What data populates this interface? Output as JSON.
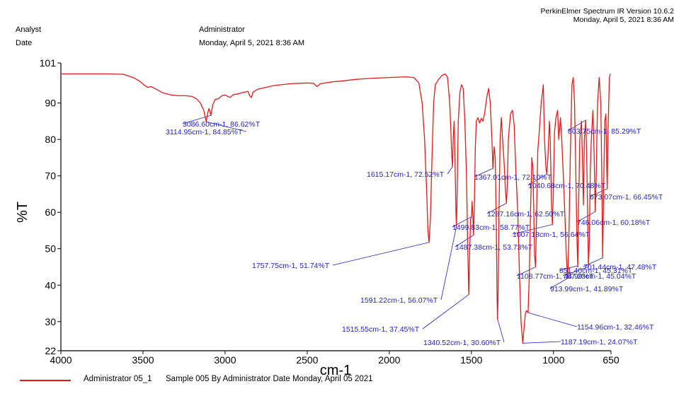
{
  "header": {
    "software": "PerkinElmer Spectrum IR Version 10.6.2",
    "printed": "Monday, April 5, 2021 8:36 AM",
    "analyst_label": "Analyst",
    "analyst_value": "Administrator",
    "date_label": "Date",
    "date_value": "Monday, April 5, 2021 8:36 AM"
  },
  "legend": {
    "name": "Administrator 05_1",
    "description": "Sample 005 By Administrator Date Monday, April 05 2021",
    "color": "#e11b1b"
  },
  "colors": {
    "spectrum": "#e11b1b",
    "annotation": "#1f1fcc",
    "axis": "#000000"
  },
  "chart_data": {
    "type": "line",
    "xlabel": "cm-1",
    "ylabel": "%T",
    "xlim": [
      4000,
      650
    ],
    "ylim": [
      22,
      101
    ],
    "x_ticks": [
      4000,
      3500,
      3000,
      2500,
      2000,
      1500,
      1000,
      650
    ],
    "y_ticks": [
      22,
      30,
      40,
      50,
      60,
      70,
      80,
      90,
      101
    ],
    "grid": false,
    "series": [
      {
        "name": "Administrator 05_1",
        "points": [
          [
            4000,
            98.0
          ],
          [
            3900,
            98.0
          ],
          [
            3800,
            98.0
          ],
          [
            3700,
            98.0
          ],
          [
            3620,
            97.9
          ],
          [
            3560,
            97.0
          ],
          [
            3520,
            96.0
          ],
          [
            3490,
            94.8
          ],
          [
            3470,
            94.3
          ],
          [
            3450,
            94.5
          ],
          [
            3420,
            93.8
          ],
          [
            3380,
            92.8
          ],
          [
            3330,
            92.2
          ],
          [
            3280,
            92.0
          ],
          [
            3240,
            92.0
          ],
          [
            3200,
            91.8
          ],
          [
            3170,
            91.0
          ],
          [
            3150,
            90.0
          ],
          [
            3130,
            88.0
          ],
          [
            3115,
            84.85
          ],
          [
            3105,
            87.5
          ],
          [
            3098,
            88.5
          ],
          [
            3087,
            86.62
          ],
          [
            3075,
            89.5
          ],
          [
            3060,
            91.0
          ],
          [
            3040,
            91.2
          ],
          [
            3020,
            92.0
          ],
          [
            3000,
            92.2
          ],
          [
            2970,
            91.5
          ],
          [
            2950,
            92.3
          ],
          [
            2920,
            92.5
          ],
          [
            2900,
            92.8
          ],
          [
            2880,
            93.0
          ],
          [
            2860,
            93.2
          ],
          [
            2850,
            92.0
          ],
          [
            2840,
            91.5
          ],
          [
            2830,
            93.0
          ],
          [
            2800,
            93.8
          ],
          [
            2750,
            94.3
          ],
          [
            2700,
            94.8
          ],
          [
            2600,
            95.3
          ],
          [
            2500,
            95.5
          ],
          [
            2460,
            95.4
          ],
          [
            2440,
            94.5
          ],
          [
            2420,
            95.3
          ],
          [
            2350,
            95.8
          ],
          [
            2300,
            96.0
          ],
          [
            2200,
            96.5
          ],
          [
            2100,
            96.8
          ],
          [
            2000,
            97.0
          ],
          [
            1900,
            97.2
          ],
          [
            1850,
            97.0
          ],
          [
            1820,
            95.5
          ],
          [
            1800,
            90.0
          ],
          [
            1785,
            80.0
          ],
          [
            1772,
            65.0
          ],
          [
            1765,
            55.0
          ],
          [
            1758,
            51.74
          ],
          [
            1750,
            58.0
          ],
          [
            1740,
            75.0
          ],
          [
            1730,
            90.0
          ],
          [
            1720,
            95.0
          ],
          [
            1700,
            96.5
          ],
          [
            1680,
            97.5
          ],
          [
            1660,
            98.0
          ],
          [
            1645,
            97.0
          ],
          [
            1632,
            90.0
          ],
          [
            1625,
            82.0
          ],
          [
            1620,
            76.0
          ],
          [
            1615,
            72.52
          ],
          [
            1611,
            80.0
          ],
          [
            1605,
            85.0
          ],
          [
            1598,
            70.0
          ],
          [
            1594,
            60.0
          ],
          [
            1591,
            56.07
          ],
          [
            1588,
            62.0
          ],
          [
            1580,
            85.0
          ],
          [
            1570,
            93.0
          ],
          [
            1560,
            95.0
          ],
          [
            1550,
            94.0
          ],
          [
            1540,
            85.0
          ],
          [
            1530,
            70.0
          ],
          [
            1522,
            50.0
          ],
          [
            1516,
            37.45
          ],
          [
            1510,
            50.0
          ],
          [
            1505,
            58.0
          ],
          [
            1500,
            58.77
          ],
          [
            1496,
            63.0
          ],
          [
            1492,
            60.0
          ],
          [
            1487,
            53.73
          ],
          [
            1482,
            62.0
          ],
          [
            1476,
            78.0
          ],
          [
            1470,
            85.0
          ],
          [
            1460,
            86.0
          ],
          [
            1450,
            84.5
          ],
          [
            1440,
            85.8
          ],
          [
            1430,
            85.0
          ],
          [
            1420,
            87.0
          ],
          [
            1405,
            92.0
          ],
          [
            1395,
            94.0
          ],
          [
            1385,
            90.0
          ],
          [
            1375,
            80.0
          ],
          [
            1369,
            72.1
          ],
          [
            1362,
            78.0
          ],
          [
            1355,
            75.0
          ],
          [
            1348,
            55.0
          ],
          [
            1344,
            38.0
          ],
          [
            1341,
            30.6
          ],
          [
            1338,
            36.0
          ],
          [
            1332,
            60.0
          ],
          [
            1325,
            80.0
          ],
          [
            1318,
            86.0
          ],
          [
            1310,
            80.0
          ],
          [
            1300,
            73.0
          ],
          [
            1293,
            66.0
          ],
          [
            1287,
            62.5
          ],
          [
            1282,
            67.0
          ],
          [
            1275,
            80.0
          ],
          [
            1262,
            87.0
          ],
          [
            1250,
            88.0
          ],
          [
            1240,
            84.0
          ],
          [
            1230,
            72.0
          ],
          [
            1218,
            60.0
          ],
          [
            1208,
            44.0
          ],
          [
            1198,
            30.0
          ],
          [
            1187,
            24.07
          ],
          [
            1180,
            28.0
          ],
          [
            1172,
            32.0
          ],
          [
            1165,
            33.0
          ],
          [
            1155,
            32.46
          ],
          [
            1148,
            42.0
          ],
          [
            1140,
            60.0
          ],
          [
            1132,
            75.0
          ],
          [
            1125,
            72.0
          ],
          [
            1115,
            48.0
          ],
          [
            1109,
            45.0
          ],
          [
            1103,
            60.0
          ],
          [
            1096,
            77.0
          ],
          [
            1090,
            80.0
          ],
          [
            1075,
            90.0
          ],
          [
            1062,
            95.0
          ],
          [
            1055,
            80.0
          ],
          [
            1046,
            72.0
          ],
          [
            1041,
            70.48
          ],
          [
            1034,
            75.0
          ],
          [
            1025,
            85.0
          ],
          [
            1020,
            80.0
          ],
          [
            1012,
            62.0
          ],
          [
            1007,
            56.64
          ],
          [
            1002,
            64.0
          ],
          [
            994,
            82.0
          ],
          [
            985,
            86.0
          ],
          [
            975,
            88.0
          ],
          [
            968,
            80.0
          ],
          [
            958,
            86.0
          ],
          [
            950,
            80.0
          ],
          [
            940,
            70.0
          ],
          [
            930,
            58.0
          ],
          [
            922,
            48.0
          ],
          [
            914,
            41.89
          ],
          [
            907,
            52.0
          ],
          [
            898,
            75.0
          ],
          [
            888,
            95.0
          ],
          [
            880,
            97.0
          ],
          [
            872,
            90.0
          ],
          [
            864,
            70.0
          ],
          [
            857,
            52.0
          ],
          [
            852,
            45.0
          ],
          [
            848,
            60.0
          ],
          [
            840,
            80.0
          ],
          [
            830,
            85.0
          ],
          [
            824,
            75.0
          ],
          [
            818,
            62.0
          ],
          [
            812,
            80.0
          ],
          [
            804,
            85.29
          ],
          [
            798,
            75.0
          ],
          [
            792,
            58.0
          ],
          [
            787,
            45.04
          ],
          [
            782,
            52.0
          ],
          [
            776,
            72.0
          ],
          [
            770,
            80.0
          ],
          [
            760,
            88.0
          ],
          [
            752,
            75.0
          ],
          [
            746,
            60.18
          ],
          [
            740,
            70.0
          ],
          [
            732,
            90.0
          ],
          [
            722,
            97.0
          ],
          [
            712,
            90.0
          ],
          [
            706,
            70.0
          ],
          [
            701,
            47.48
          ],
          [
            696,
            62.0
          ],
          [
            688,
            85.0
          ],
          [
            681,
            87.0
          ],
          [
            675,
            70.0
          ],
          [
            673,
            66.45
          ],
          [
            668,
            82.0
          ],
          [
            660,
            97.0
          ],
          [
            654,
            98.0
          ]
        ]
      }
    ],
    "annotations": [
      {
        "text": "3086.60cm-1, 86.62%T",
        "x": 3086.6,
        "y": 86.62
      },
      {
        "text": "3114.95cm-1, 84.85%T",
        "x": 3114.95,
        "y": 84.85
      },
      {
        "text": "1615.17cm-1, 72.52%T",
        "x": 1615.17,
        "y": 72.52
      },
      {
        "text": "1757.75cm-1, 51.74%T",
        "x": 1757.75,
        "y": 51.74
      },
      {
        "text": "1591.22cm-1, 56.07%T",
        "x": 1591.22,
        "y": 56.07
      },
      {
        "text": "1515.55cm-1, 37.45%T",
        "x": 1515.55,
        "y": 37.45
      },
      {
        "text": "1499.83cm-1, 58.77%T",
        "x": 1499.83,
        "y": 58.77
      },
      {
        "text": "1487.38cm-1, 53.73%T",
        "x": 1487.38,
        "y": 53.73
      },
      {
        "text": "1340.52cm-1, 30.60%T",
        "x": 1340.52,
        "y": 30.6
      },
      {
        "text": "1367.01cm-1, 72.10%T",
        "x": 1367.01,
        "y": 72.1
      },
      {
        "text": "1287.16cm-1, 62.50%T",
        "x": 1287.16,
        "y": 62.5
      },
      {
        "text": "1187.19cm-1, 24.07%T",
        "x": 1187.19,
        "y": 24.07
      },
      {
        "text": "1154.96cm-1, 32.46%T",
        "x": 1154.96,
        "y": 32.46
      },
      {
        "text": "1108.77cm-1, 44.99%T",
        "x": 1108.77,
        "y": 44.99
      },
      {
        "text": "1040.68cm-1, 70.48%T",
        "x": 1040.68,
        "y": 70.48
      },
      {
        "text": "1007.18cm-1, 56.64%T",
        "x": 1007.18,
        "y": 56.64
      },
      {
        "text": "913.99cm-1, 41.89%T",
        "x": 913.99,
        "y": 41.89
      },
      {
        "text": "851.40cm-1, 45.31%T",
        "x": 851.4,
        "y": 45.31
      },
      {
        "text": "803.75cm-1, 85.29%T",
        "x": 803.75,
        "y": 85.29
      },
      {
        "text": "787.23cm-1, 45.04%T",
        "x": 787.23,
        "y": 45.04
      },
      {
        "text": "746.06cm-1, 60.18%T",
        "x": 746.06,
        "y": 60.18
      },
      {
        "text": "701.44cm-1, 47.48%T",
        "x": 701.44,
        "y": 47.48
      },
      {
        "text": "673.07cm-1, 66.45%T",
        "x": 673.07,
        "y": 66.45
      }
    ]
  }
}
